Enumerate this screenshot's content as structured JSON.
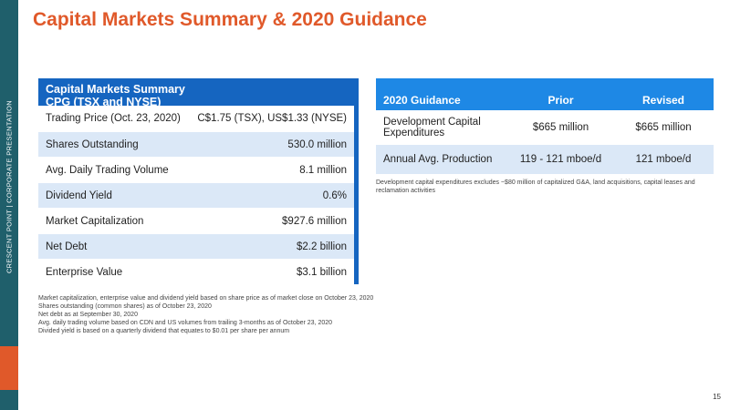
{
  "sidebar": {
    "text": "CRESCENT POINT  |  CORPORATE PRESENTATION"
  },
  "title": "Capital Markets Summary & 2020 Guidance",
  "summary": {
    "header_line1": "Capital Markets Summary",
    "header_line2": "CPG (TSX and NYSE)",
    "rows": [
      {
        "label": "Trading Price (Oct. 23, 2020)",
        "value": "C$1.75 (TSX), US$1.33 (NYSE)"
      },
      {
        "label": "Shares Outstanding",
        "value": "530.0 million"
      },
      {
        "label": "Avg. Daily Trading Volume",
        "value": "8.1 million"
      },
      {
        "label": "Dividend Yield",
        "value": "0.6%"
      },
      {
        "label": "Market Capitalization",
        "value": "$927.6 million"
      },
      {
        "label": "Net Debt",
        "value": "$2.2 billion"
      },
      {
        "label": "Enterprise Value",
        "value": "$3.1 billion"
      }
    ]
  },
  "guidance": {
    "headers": [
      "2020 Guidance",
      "Prior",
      "Revised"
    ],
    "rows": [
      {
        "label": "Development Capital Expenditures",
        "prior": "$665 million",
        "revised": "$665 million"
      },
      {
        "label": "Annual Avg. Production",
        "prior": "119 - 121 mboe/d",
        "revised": "121 mboe/d"
      }
    ],
    "footnote": "Development capital expenditures excludes ~$80 million of capitalized G&A, land acquisitions, capital leases and reclamation activities"
  },
  "notes": [
    "Market capitalization, enterprise value and dividend yield based on share price as of market close on October 23, 2020",
    "Shares outstanding (common shares) as of October 23, 2020",
    "Net debt as at September 30, 2020",
    "Avg. daily trading volume based on CDN and US volumes from trailing 3-months as of October 23, 2020",
    "Divided yield is based on a quarterly dividend that equates to $0.01 per share per annum"
  ],
  "page_number": "15",
  "colors": {
    "accent": "#e0592a",
    "sidebar": "#1f5f6b",
    "header_blue": "#1565c0",
    "row_blue": "#dbe8f7"
  }
}
